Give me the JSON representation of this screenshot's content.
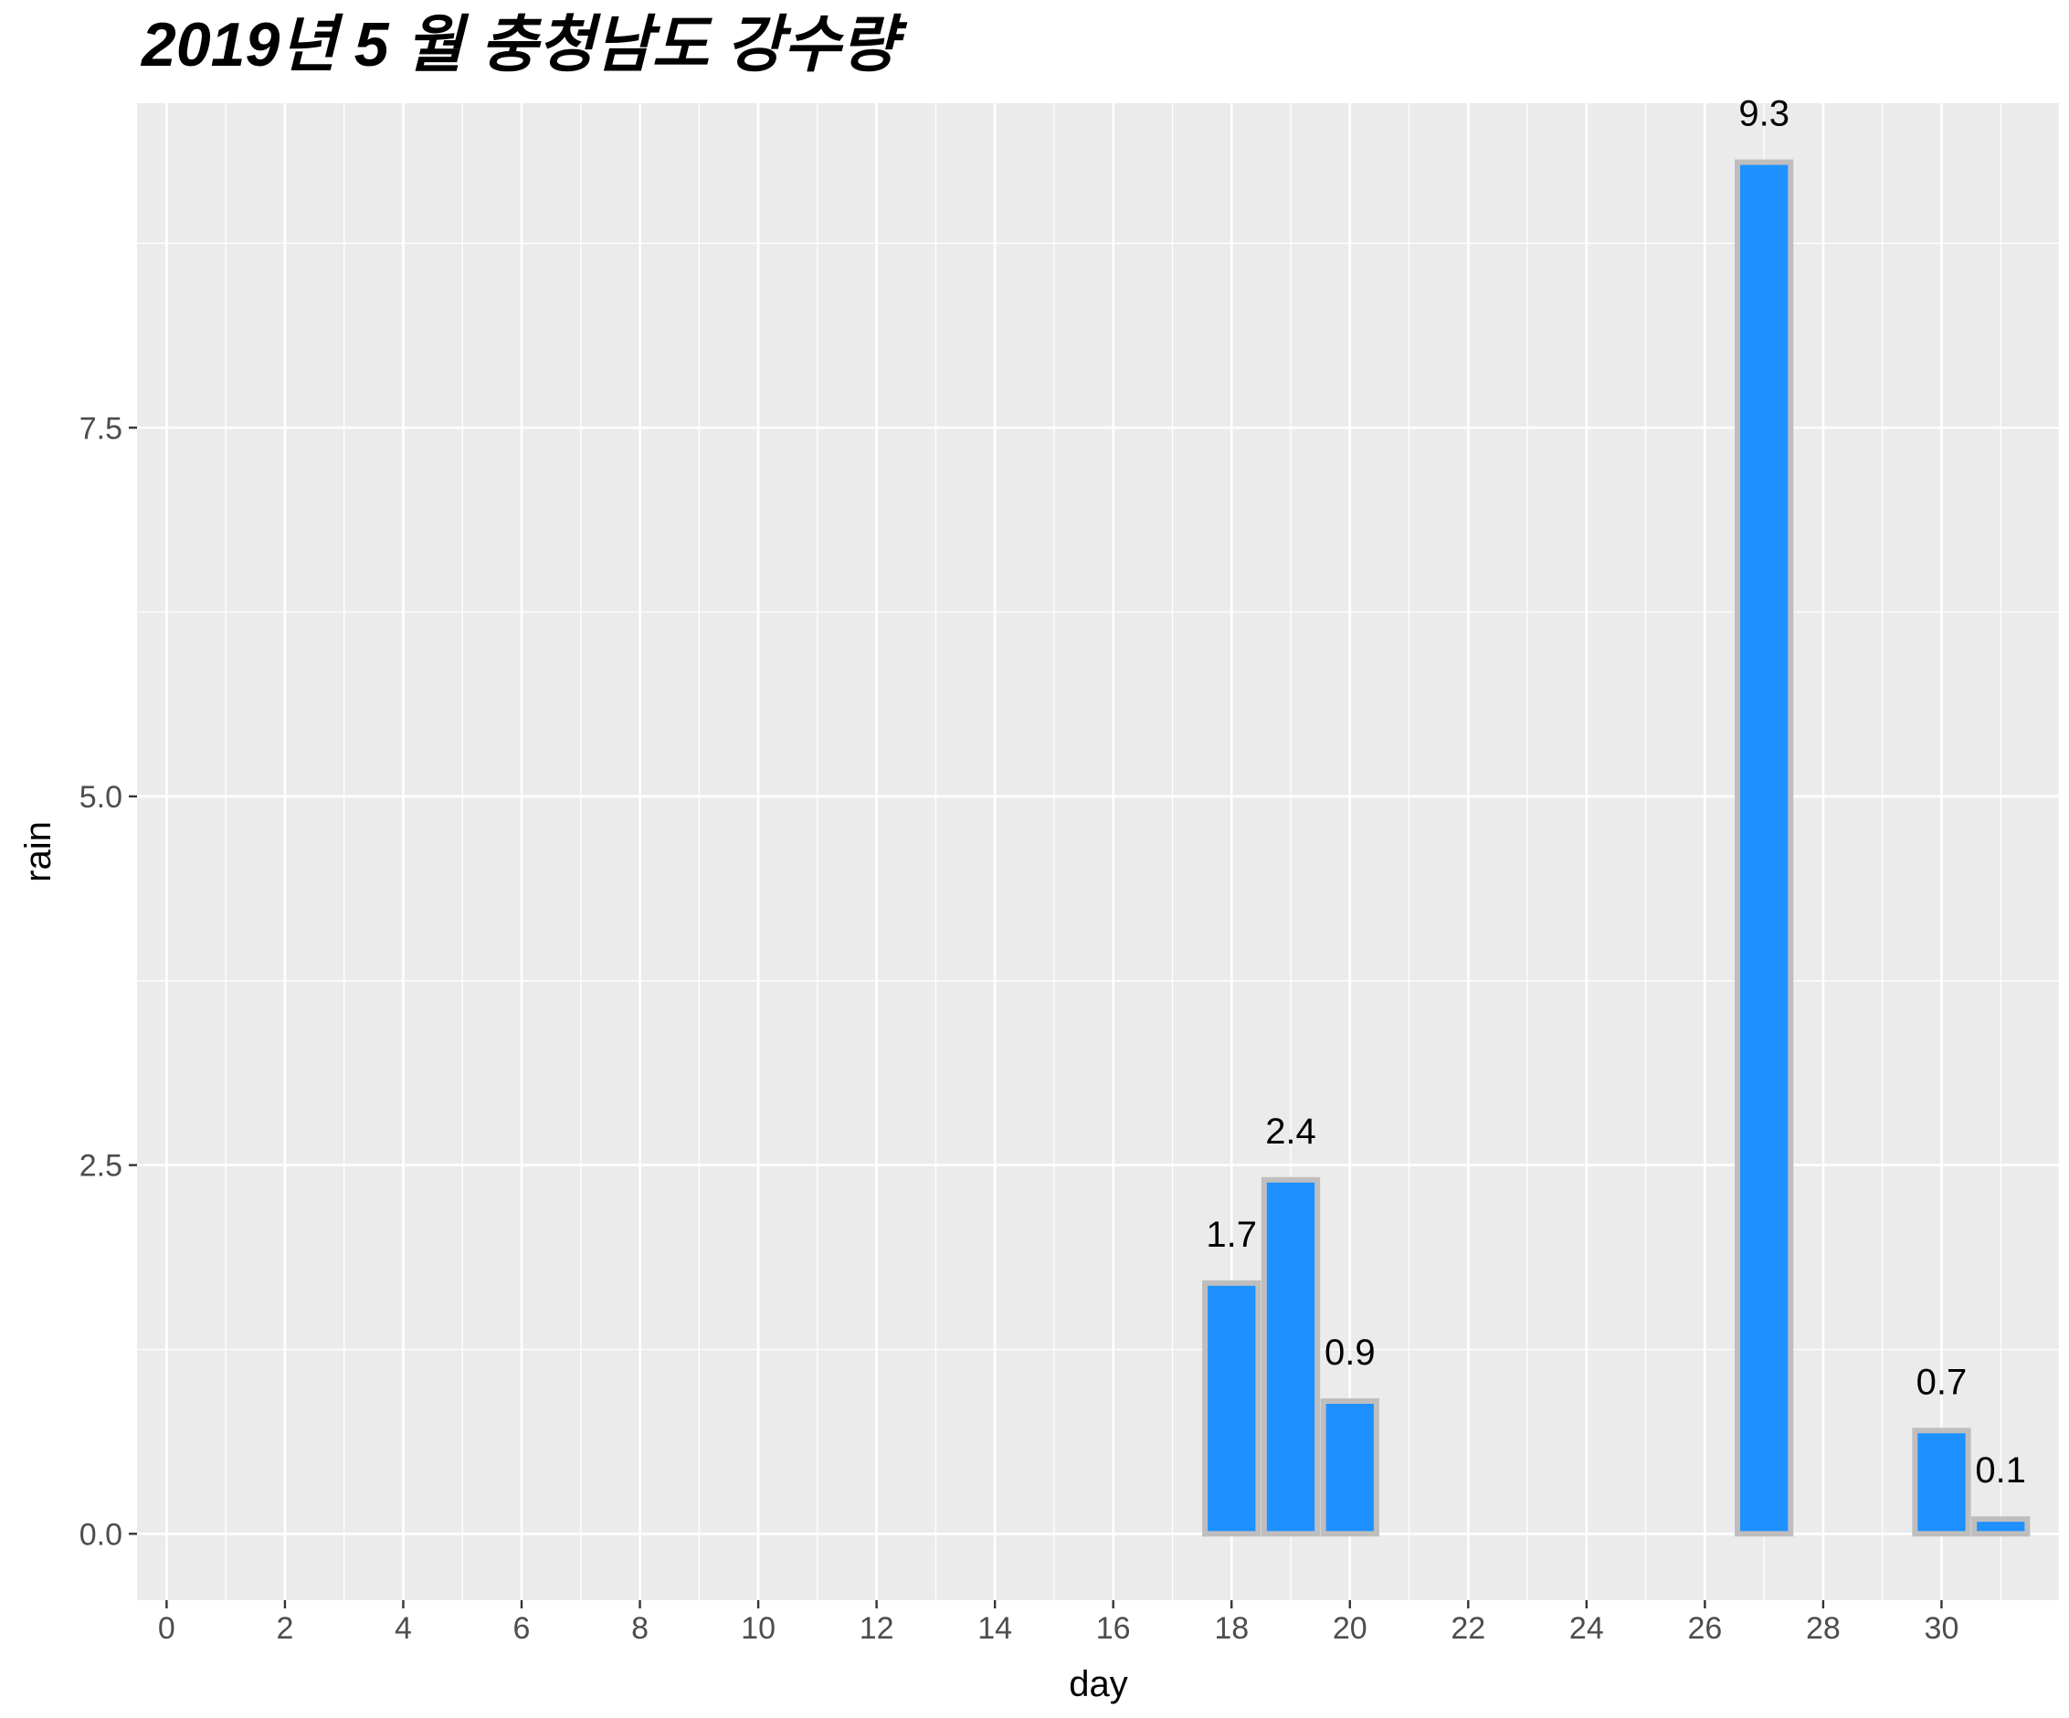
{
  "chart_data": {
    "type": "bar",
    "title": "2019년 5 월 충청남도 강수량",
    "xlabel": "day",
    "ylabel": "rain",
    "xlim": [
      -0.5,
      32
    ],
    "ylim": [
      -0.45,
      9.7
    ],
    "x_ticks": [
      0,
      2,
      4,
      6,
      8,
      10,
      12,
      14,
      16,
      18,
      20,
      22,
      24,
      26,
      28,
      30
    ],
    "y_ticks": [
      0.0,
      2.5,
      5.0,
      7.5
    ],
    "y_tick_labels": [
      "0.0",
      "2.5",
      "5.0",
      "7.5"
    ],
    "x": [
      18,
      19,
      20,
      27,
      30,
      31
    ],
    "values": [
      1.7,
      2.4,
      0.9,
      9.3,
      0.7,
      0.1
    ],
    "data_labels": [
      "1.7",
      "2.4",
      "0.9",
      "9.3",
      "0.7",
      "0.1"
    ],
    "bar_fill": "#1e90ff",
    "bar_outline": "#bebebe",
    "panel_background": "#ebebeb",
    "grid_color": "#ffffff",
    "grid": true,
    "legend": "none"
  }
}
